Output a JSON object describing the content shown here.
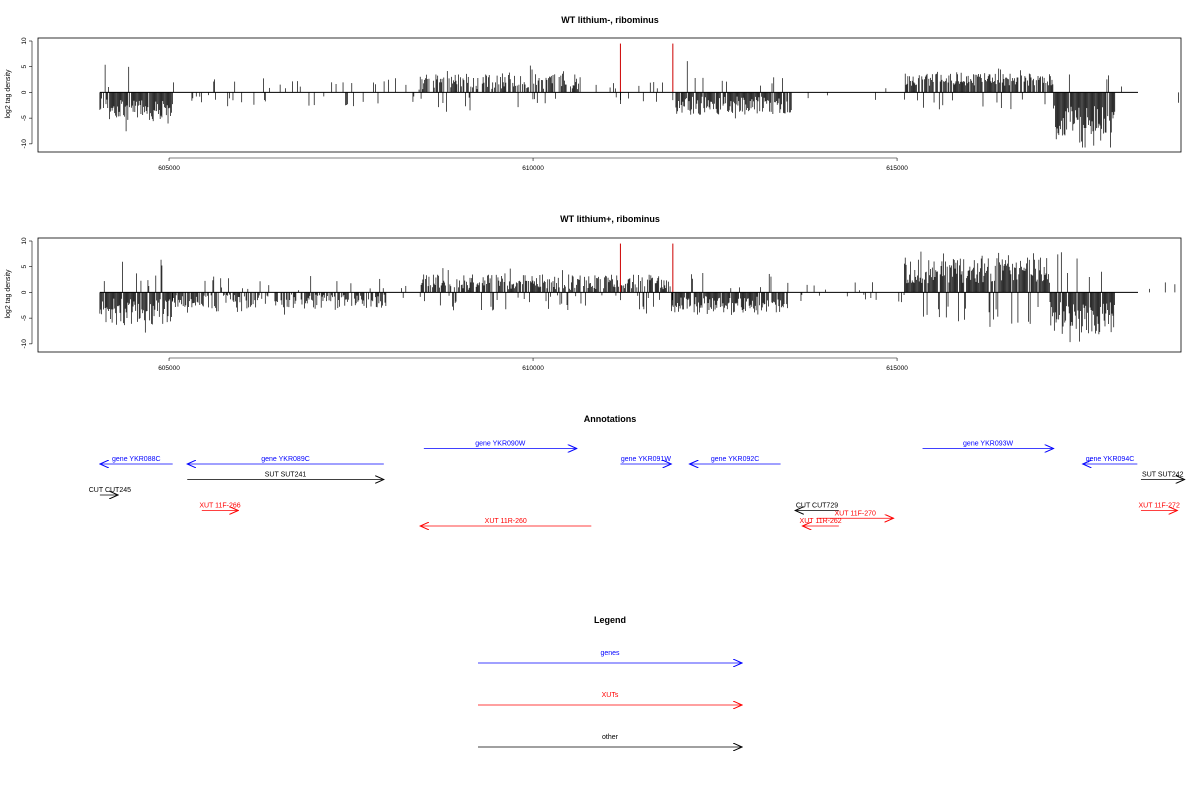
{
  "chart_data": [
    {
      "type": "bar",
      "title": "WT lithium-, ribominus",
      "xlabel": "",
      "ylabel": "log2 tag density",
      "xlim": [
        603200,
        618900
      ],
      "ylim": [
        -11,
        10
      ],
      "xticks": [
        605000,
        610000,
        615000
      ],
      "xtick_labels": [
        "605000",
        "610000",
        "615000"
      ],
      "yticks": [
        10,
        5,
        0,
        -5,
        -10
      ],
      "ytick_labels": [
        "10",
        "5",
        "0",
        "-5",
        "-10"
      ],
      "bar_color": "#000000",
      "highlight_color": "#cc0000",
      "segments": [
        {
          "start": 604050,
          "end": 605050,
          "mode": "neg",
          "density": 0.95,
          "mean": 3.2,
          "amp": 2.2
        },
        {
          "start": 605050,
          "end": 608450,
          "mode": "sparse",
          "density": 0.18,
          "mean": 1.6,
          "amp": 1.2
        },
        {
          "start": 608450,
          "end": 610650,
          "mode": "pos",
          "density": 0.65,
          "mean": 2.2,
          "amp": 1.6
        },
        {
          "start": 610650,
          "end": 611950,
          "mode": "sparse",
          "density": 0.12,
          "mean": 1.5,
          "amp": 1.0
        },
        {
          "start": 611950,
          "end": 613550,
          "mode": "neg",
          "density": 0.95,
          "mean": 2.6,
          "amp": 1.8
        },
        {
          "start": 613550,
          "end": 615100,
          "mode": "sparse",
          "density": 0.05,
          "mean": 1.0,
          "amp": 0.6
        },
        {
          "start": 615100,
          "end": 617150,
          "mode": "pos",
          "density": 0.9,
          "mean": 2.5,
          "amp": 1.2
        },
        {
          "start": 617150,
          "end": 618000,
          "mode": "neg",
          "density": 1.0,
          "mean": 5.5,
          "amp": 3.0
        },
        {
          "start": 618000,
          "end": 618900,
          "mode": "sparse",
          "density": 0.05,
          "mean": 1.5,
          "amp": 1.0
        }
      ],
      "highlights": [
        {
          "x": 611200,
          "y": 9.5
        },
        {
          "x": 611920,
          "y": 9.5
        }
      ]
    },
    {
      "type": "bar",
      "title": "WT lithium+, ribominus",
      "xlabel": "",
      "ylabel": "log2 tag density",
      "xlim": [
        603200,
        618900
      ],
      "ylim": [
        -11,
        10
      ],
      "xticks": [
        605000,
        610000,
        615000
      ],
      "xtick_labels": [
        "605000",
        "610000",
        "615000"
      ],
      "yticks": [
        10,
        5,
        0,
        -5,
        -10
      ],
      "ytick_labels": [
        "10",
        "5",
        "0",
        "-5",
        "-10"
      ],
      "bar_color": "#000000",
      "highlight_color": "#cc0000",
      "segments": [
        {
          "start": 604050,
          "end": 605050,
          "mode": "neg",
          "density": 1.0,
          "mean": 3.8,
          "amp": 2.6
        },
        {
          "start": 605050,
          "end": 608000,
          "mode": "neg",
          "density": 0.7,
          "mean": 1.8,
          "amp": 1.4
        },
        {
          "start": 608000,
          "end": 608450,
          "mode": "sparse",
          "density": 0.05,
          "mean": 1.0,
          "amp": 0.6
        },
        {
          "start": 608450,
          "end": 611900,
          "mode": "pos",
          "density": 0.85,
          "mean": 2.0,
          "amp": 1.5
        },
        {
          "start": 611900,
          "end": 613500,
          "mode": "neg",
          "density": 0.95,
          "mean": 2.3,
          "amp": 1.6
        },
        {
          "start": 613500,
          "end": 615100,
          "mode": "sparse",
          "density": 0.12,
          "mean": 1.2,
          "amp": 0.8
        },
        {
          "start": 615100,
          "end": 617100,
          "mode": "pos",
          "density": 1.0,
          "mean": 4.3,
          "amp": 2.5
        },
        {
          "start": 617100,
          "end": 618000,
          "mode": "neg",
          "density": 1.0,
          "mean": 5.0,
          "amp": 3.2
        },
        {
          "start": 618000,
          "end": 618900,
          "mode": "sparse",
          "density": 0.05,
          "mean": 1.2,
          "amp": 0.8
        }
      ],
      "highlights": [
        {
          "x": 611200,
          "y": 9.5
        },
        {
          "x": 611920,
          "y": 9.5
        }
      ]
    }
  ],
  "annotations": {
    "title": "Annotations",
    "xlim": [
      603200,
      618900
    ],
    "colors": {
      "gene": "#0000ff",
      "xut": "#ff0000",
      "other": "#000000"
    },
    "features": [
      {
        "label": "gene YKR088C",
        "start": 604050,
        "end": 605050,
        "strand": "-",
        "kind": "gene",
        "row": 0
      },
      {
        "label": "gene YKR089C",
        "start": 605250,
        "end": 607950,
        "strand": "-",
        "kind": "gene",
        "row": 0
      },
      {
        "label": "gene YKR090W",
        "start": 608500,
        "end": 610600,
        "strand": "+",
        "kind": "gene",
        "row": -1
      },
      {
        "label": "gene YKR091W",
        "start": 611200,
        "end": 611900,
        "strand": "+",
        "kind": "gene",
        "row": 0
      },
      {
        "label": "gene YKR092C",
        "start": 612150,
        "end": 613400,
        "strand": "-",
        "kind": "gene",
        "row": 0
      },
      {
        "label": "gene YKR093W",
        "start": 615350,
        "end": 617150,
        "strand": "+",
        "kind": "gene",
        "row": -1
      },
      {
        "label": "gene YKR094C",
        "start": 617550,
        "end": 618300,
        "strand": "-",
        "kind": "gene",
        "row": 0
      },
      {
        "label": "SUT SUT241",
        "start": 605250,
        "end": 607950,
        "strand": "+",
        "kind": "other",
        "row": 1
      },
      {
        "label": "SUT SUT242",
        "start": 618350,
        "end": 618950,
        "strand": "+",
        "kind": "other",
        "row": 1
      },
      {
        "label": "CUT CUT245",
        "start": 604050,
        "end": 604300,
        "strand": "+",
        "kind": "other",
        "row": 2
      },
      {
        "label": "CUT CUT729",
        "start": 613600,
        "end": 614200,
        "strand": "-",
        "kind": "other",
        "row": 3
      },
      {
        "label": "XUT 11F-266",
        "start": 605450,
        "end": 605950,
        "strand": "+",
        "kind": "xut",
        "row": 3
      },
      {
        "label": "XUT 11F-270",
        "start": 613900,
        "end": 614950,
        "strand": "+",
        "kind": "xut",
        "row": 3.5
      },
      {
        "label": "XUT 11R-262",
        "start": 613700,
        "end": 614200,
        "strand": "-",
        "kind": "xut",
        "row": 4
      },
      {
        "label": "XUT 11R-260",
        "start": 608450,
        "end": 610800,
        "strand": "-",
        "kind": "xut",
        "row": 4
      },
      {
        "label": "XUT 11F-272",
        "start": 618350,
        "end": 618850,
        "strand": "+",
        "kind": "xut",
        "row": 3
      }
    ]
  },
  "legend": {
    "title": "Legend",
    "items": [
      {
        "label": "genes",
        "color": "#0000ff"
      },
      {
        "label": "XUTs",
        "color": "#ff0000"
      },
      {
        "label": "other",
        "color": "#000000"
      }
    ]
  }
}
